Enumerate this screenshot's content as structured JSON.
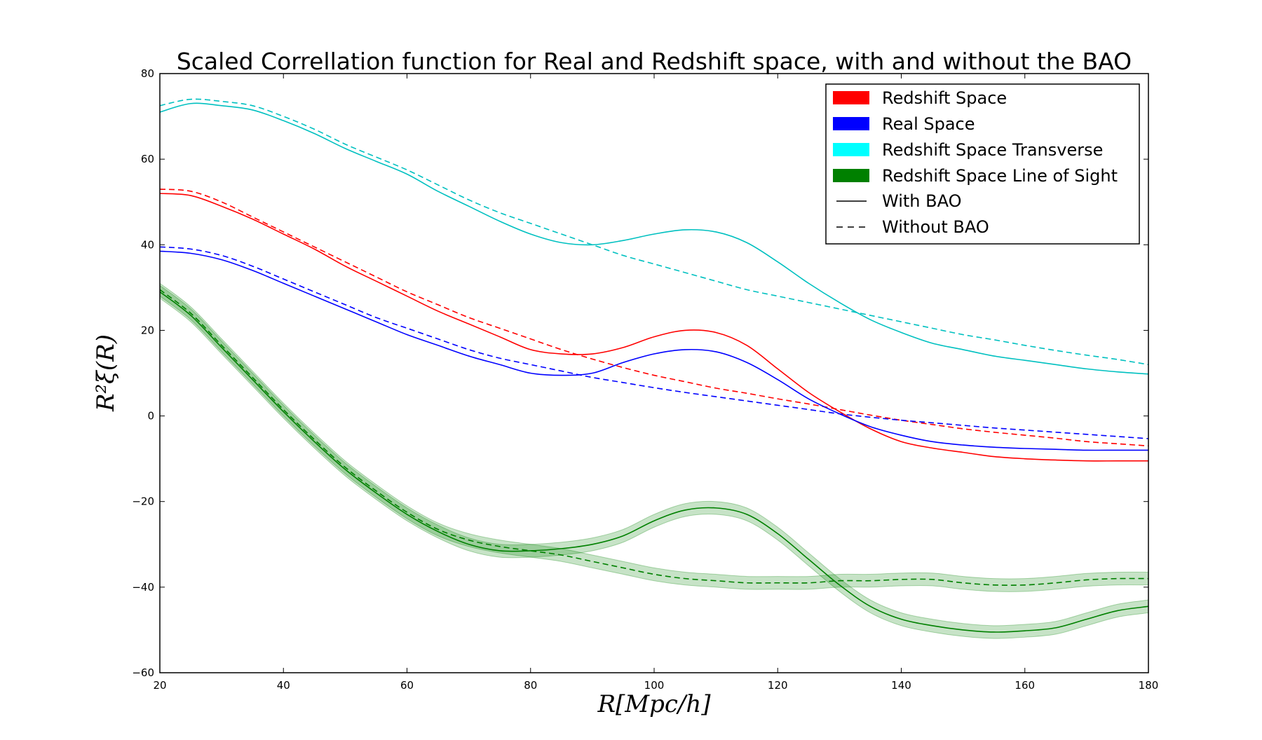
{
  "chart_data": {
    "type": "line",
    "title": "Scaled Correllation function for Real and Redshift space, with and without the BAO",
    "xlabel": "R[Mpc/h]",
    "ylabel": "R²ξ(R)",
    "xlim": [
      20,
      180
    ],
    "ylim": [
      -60,
      80
    ],
    "xticks": [
      "20",
      "40",
      "60",
      "80",
      "100",
      "120",
      "140",
      "160",
      "180"
    ],
    "yticks": [
      "80",
      "60",
      "40",
      "20",
      "0",
      "−20",
      "−40",
      "−60"
    ],
    "x": [
      20,
      25,
      30,
      35,
      40,
      45,
      50,
      55,
      60,
      65,
      70,
      75,
      80,
      85,
      90,
      95,
      100,
      105,
      110,
      115,
      120,
      125,
      130,
      135,
      140,
      145,
      150,
      155,
      160,
      165,
      170,
      175,
      180
    ],
    "series": [
      {
        "name": "Redshift Space",
        "color": "#ff0000",
        "style": "solid",
        "values": [
          52,
          51.5,
          49,
          46,
          42.5,
          39,
          35,
          31.5,
          28,
          24.5,
          21.5,
          18.5,
          15.5,
          14.5,
          14.5,
          16,
          18.5,
          20,
          19.5,
          16.5,
          11,
          5.5,
          1,
          -3,
          -6,
          -7.5,
          -8.5,
          -9.5,
          -10,
          -10.3,
          -10.5,
          -10.5,
          -10.5
        ]
      },
      {
        "name": "Redshift Space",
        "color": "#ff0000",
        "style": "dashed",
        "values": [
          53,
          52.5,
          50,
          46.5,
          43,
          39.5,
          36,
          32.5,
          29,
          26,
          23,
          20.5,
          18,
          15.5,
          13.3,
          11.3,
          9.5,
          8,
          6.5,
          5.3,
          4,
          2.8,
          1.5,
          0.2,
          -1,
          -2,
          -3,
          -3.8,
          -4.5,
          -5.2,
          -6,
          -6.5,
          -7
        ]
      },
      {
        "name": "Real Space",
        "color": "#0000ff",
        "style": "solid",
        "values": [
          38.5,
          38,
          36.5,
          34,
          31,
          28,
          25,
          22,
          19,
          16.5,
          14,
          12,
          10,
          9.5,
          10,
          12.5,
          14.5,
          15.5,
          15,
          12.5,
          8.5,
          4,
          0.5,
          -2.5,
          -4.5,
          -6,
          -6.8,
          -7.3,
          -7.6,
          -7.8,
          -8,
          -8,
          -8
        ]
      },
      {
        "name": "Real Space",
        "color": "#0000ff",
        "style": "dashed",
        "values": [
          39.5,
          39,
          37.5,
          35,
          32,
          29,
          26,
          23,
          20.5,
          18,
          15.5,
          13.5,
          12,
          10.5,
          9,
          7.8,
          6.6,
          5.5,
          4.5,
          3.5,
          2.5,
          1.5,
          0.5,
          -0.3,
          -1,
          -1.6,
          -2.2,
          -2.8,
          -3.3,
          -3.8,
          -4.3,
          -4.8,
          -5.3
        ]
      },
      {
        "name": "Redshift Space Transverse",
        "color": "#00c0c0",
        "style": "solid",
        "values": [
          71,
          73,
          72.5,
          71.5,
          69,
          66,
          62.5,
          59.5,
          56.5,
          52.5,
          49,
          45.5,
          42.5,
          40.5,
          40,
          41,
          42.5,
          43.5,
          43,
          40.5,
          36,
          31,
          26.5,
          22.5,
          19.5,
          17,
          15.5,
          14,
          13,
          12,
          11,
          10.3,
          9.8
        ]
      },
      {
        "name": "Redshift Space Transverse",
        "color": "#00c0c0",
        "style": "dashed",
        "values": [
          72.5,
          74,
          73.5,
          72.5,
          70,
          67,
          63.5,
          60.5,
          57.5,
          54,
          50.5,
          47.5,
          45,
          42.5,
          40,
          37.5,
          35.5,
          33.5,
          31.5,
          29.5,
          28,
          26.5,
          25,
          23.5,
          22,
          20.5,
          19,
          17.8,
          16.5,
          15.3,
          14.2,
          13.2,
          12
        ]
      },
      {
        "name": "Redshift Space Line of Sight",
        "color": "#008000",
        "style": "solid",
        "values": [
          29,
          23.5,
          16,
          8.5,
          1,
          -6,
          -12.5,
          -18,
          -23,
          -27,
          -30,
          -31.5,
          -31.5,
          -31,
          -30,
          -28,
          -24.5,
          -22,
          -21.5,
          -23,
          -27.5,
          -33.5,
          -39.5,
          -44.5,
          -47.5,
          -49,
          -50,
          -50.5,
          -50.2,
          -49.5,
          -47.5,
          -45.5,
          -44.5
        ]
      },
      {
        "name": "Redshift Space Line of Sight",
        "color": "#008000",
        "style": "dashed",
        "values": [
          29.5,
          24,
          16.5,
          9,
          1.5,
          -5.5,
          -12,
          -17.5,
          -22.5,
          -26.5,
          -29,
          -30.5,
          -31.5,
          -32.5,
          -34,
          -35.5,
          -37,
          -38,
          -38.5,
          -39,
          -39,
          -39,
          -38.5,
          -38.5,
          -38.2,
          -38.2,
          -39,
          -39.5,
          -39.5,
          -39,
          -38.3,
          -38,
          -38
        ]
      }
    ],
    "legend": {
      "placement": "top-right",
      "entries": [
        {
          "label": "Redshift Space",
          "kind": "patch",
          "color": "#ff0000"
        },
        {
          "label": "Real Space",
          "kind": "patch",
          "color": "#0000ff"
        },
        {
          "label": "Redshift Space Transverse",
          "kind": "patch",
          "color": "#00ffff"
        },
        {
          "label": "Redshift Space Line of Sight",
          "kind": "patch",
          "color": "#008000"
        },
        {
          "label": "With BAO",
          "kind": "line-solid",
          "color": "#000000"
        },
        {
          "label": "Without BAO",
          "kind": "line-dashed",
          "color": "#000000"
        }
      ]
    },
    "band_color": "#008000",
    "band_halfwidth": 1.5
  }
}
